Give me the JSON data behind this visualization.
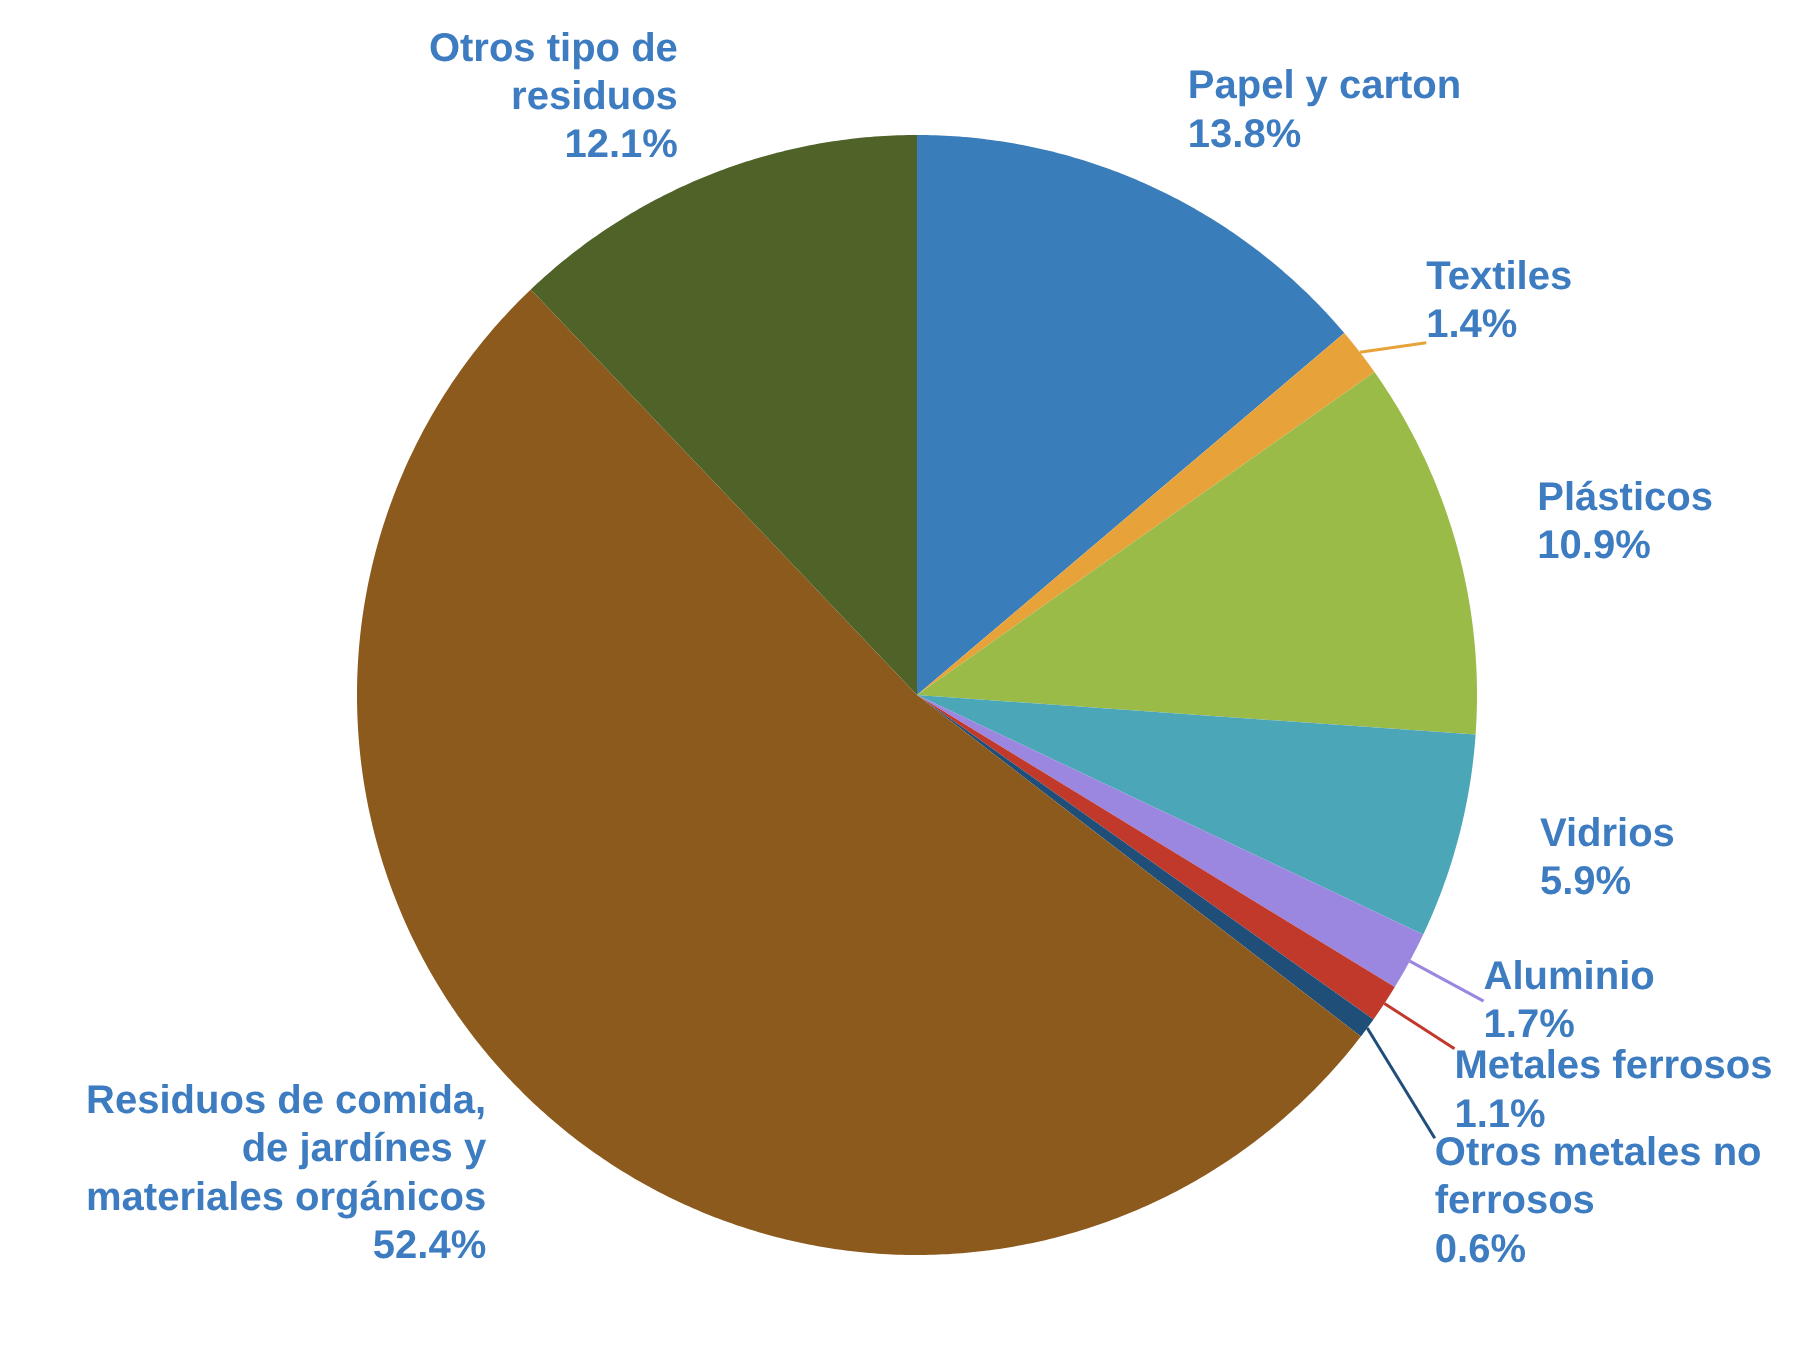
{
  "chart_data": {
    "type": "pie",
    "categories": [
      "Papel y carton",
      "Textiles",
      "Plásticos",
      "Vidrios",
      "Aluminio",
      "Metales ferrosos",
      "Otros metales no ferrosos",
      "Residuos de comida, de jardínes y materiales orgánicos",
      "Otros tipo de residuos"
    ],
    "values": [
      13.8,
      1.4,
      10.9,
      5.9,
      1.7,
      1.1,
      0.6,
      52.4,
      12.1
    ],
    "value_labels": [
      "13.8%",
      "1.4%",
      "10.9%",
      "5.9%",
      "1.7%",
      "1.1%",
      "0.6%",
      "52.4%",
      "12.1%"
    ],
    "colors": [
      "#3a7dbb",
      "#e8a23a",
      "#9bbb48",
      "#4ba6b8",
      "#9b86e0",
      "#c0392b",
      "#1f4e79",
      "#8b5a1c",
      "#4f6228"
    ]
  }
}
